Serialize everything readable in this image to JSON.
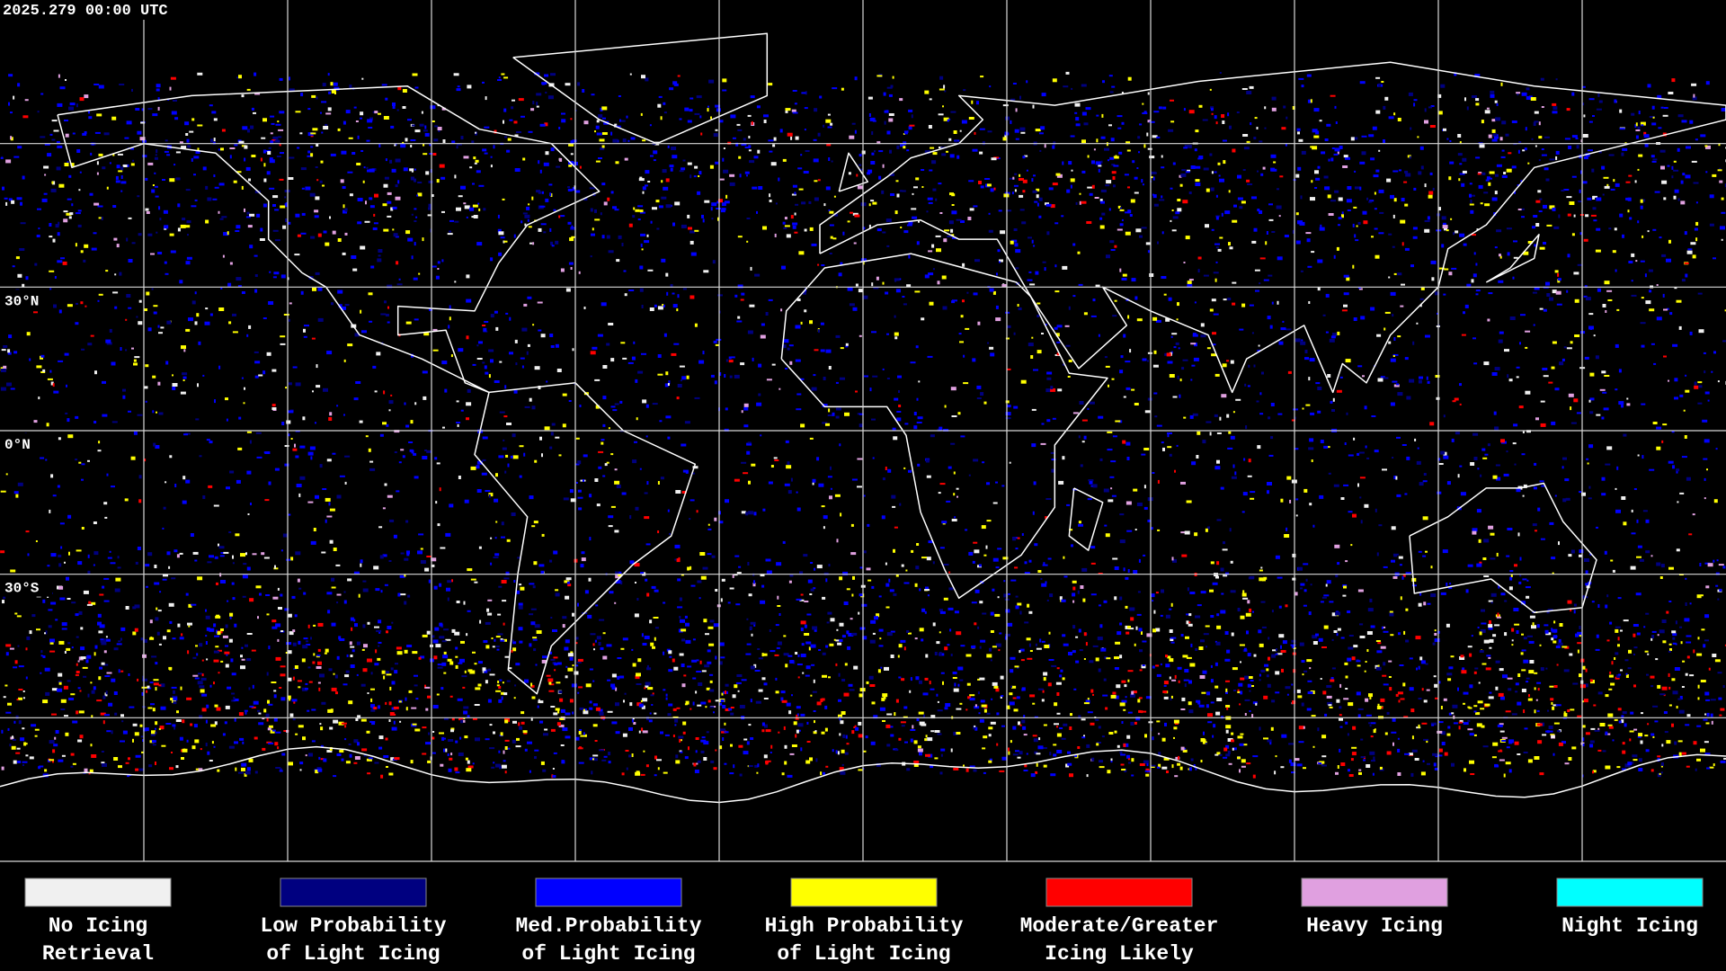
{
  "header": {
    "timestamp": "2025.279 00:00 UTC"
  },
  "grid": {
    "lat_labels": [
      "30°N",
      "0°N",
      "30°S"
    ]
  },
  "legend": {
    "items": [
      {
        "lines": [
          "No Icing",
          "Retrieval"
        ],
        "color": "#f0f0f0"
      },
      {
        "lines": [
          "Low Probability",
          "of Light Icing"
        ],
        "color": "#000080"
      },
      {
        "lines": [
          "Med.Probability",
          "of Light Icing"
        ],
        "color": "#0000ff"
      },
      {
        "lines": [
          "High Probability",
          "of Light Icing"
        ],
        "color": "#ffff00"
      },
      {
        "lines": [
          "Moderate/Greater",
          "Icing Likely"
        ],
        "color": "#ff0000"
      },
      {
        "lines": [
          "Heavy Icing"
        ],
        "color": "#e0a0e0"
      },
      {
        "lines": [
          "Night Icing"
        ],
        "color": "#00ffff"
      }
    ]
  }
}
